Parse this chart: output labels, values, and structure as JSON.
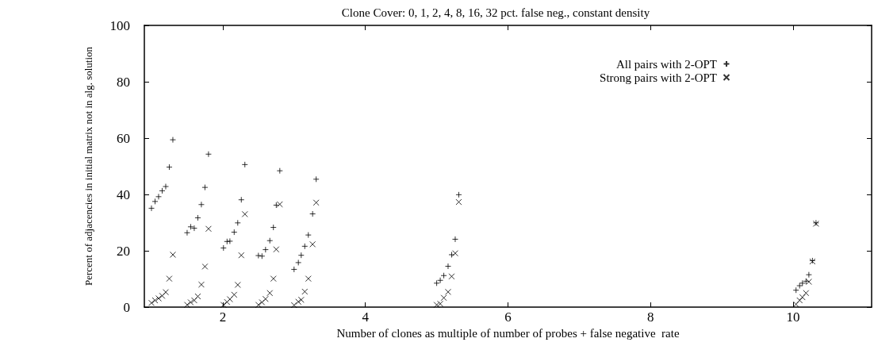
{
  "chart_data": {
    "type": "scatter",
    "title": "Clone Cover: 0, 1, 2, 4, 8, 16, 32 pct. false neg., constant density",
    "xlabel": "Number of clones as multiple of number of probes + false negative  rate",
    "ylabel": "Percent of adjacencies in initial matrix not in alg. solution",
    "xlim": [
      0.9,
      11.1
    ],
    "xticks": [
      2,
      4,
      6,
      8,
      10
    ],
    "ylim": [
      0,
      100
    ],
    "yticks": [
      0,
      20,
      40,
      60,
      80,
      100
    ],
    "grid": false,
    "legend": "top right",
    "series": [
      {
        "name": "All pairs with 2-OPT",
        "color": "#000000",
        "marker": "plus",
        "x": [
          1.0,
          1.05,
          1.1,
          1.15,
          1.2,
          1.25,
          1.3,
          1.5,
          1.55,
          1.6,
          1.65,
          1.7,
          1.75,
          1.8,
          2.01,
          2.06,
          2.1,
          2.16,
          2.21,
          2.26,
          2.31,
          2.5,
          2.55,
          2.6,
          2.66,
          2.71,
          2.75,
          2.8,
          3.0,
          3.06,
          3.1,
          3.15,
          3.2,
          3.26,
          3.31,
          5.0,
          5.05,
          5.1,
          5.16,
          5.21,
          5.26,
          5.31,
          10.04,
          10.09,
          10.13,
          10.18,
          10.22,
          10.27,
          10.32
        ],
        "values": [
          35.1,
          37.5,
          39.2,
          41.3,
          42.8,
          49.7,
          59.4,
          26.4,
          28.5,
          28.0,
          31.7,
          36.4,
          42.5,
          54.3,
          21.0,
          23.3,
          23.4,
          26.6,
          29.9,
          38.1,
          50.6,
          18.3,
          18.1,
          20.4,
          23.6,
          28.3,
          36.2,
          48.4,
          13.4,
          15.8,
          18.4,
          21.6,
          25.6,
          33.1,
          45.4,
          8.5,
          9.5,
          11.2,
          14.5,
          18.6,
          24.1,
          39.9,
          6.0,
          7.6,
          8.5,
          9.2,
          11.5,
          16.5,
          29.9
        ]
      },
      {
        "name": "Strong pairs with 2-OPT",
        "color": "#000000",
        "marker": "cross",
        "x": [
          1.0,
          1.05,
          1.1,
          1.15,
          1.2,
          1.25,
          1.3,
          1.5,
          1.55,
          1.6,
          1.65,
          1.7,
          1.75,
          1.8,
          2.01,
          2.06,
          2.1,
          2.16,
          2.21,
          2.26,
          2.31,
          2.5,
          2.55,
          2.6,
          2.66,
          2.71,
          2.75,
          2.8,
          3.0,
          3.06,
          3.1,
          3.15,
          3.2,
          3.26,
          3.31,
          5.0,
          5.05,
          5.1,
          5.16,
          5.21,
          5.26,
          5.31,
          10.04,
          10.09,
          10.13,
          10.18,
          10.22,
          10.27,
          10.32
        ],
        "values": [
          1.5,
          2.4,
          3.1,
          4.0,
          5.3,
          10.1,
          18.6,
          0.8,
          1.7,
          2.4,
          3.8,
          8.0,
          14.4,
          27.8,
          0.8,
          1.8,
          2.8,
          4.4,
          7.9,
          18.4,
          33.0,
          0.8,
          1.7,
          2.9,
          5.0,
          10.1,
          20.5,
          36.5,
          0.7,
          1.9,
          2.6,
          5.5,
          10.1,
          22.3,
          37.1,
          0.8,
          1.2,
          3.3,
          5.4,
          10.9,
          19.1,
          37.3,
          1.0,
          2.4,
          3.5,
          5.0,
          9.0,
          16.2,
          29.6
        ]
      }
    ]
  }
}
